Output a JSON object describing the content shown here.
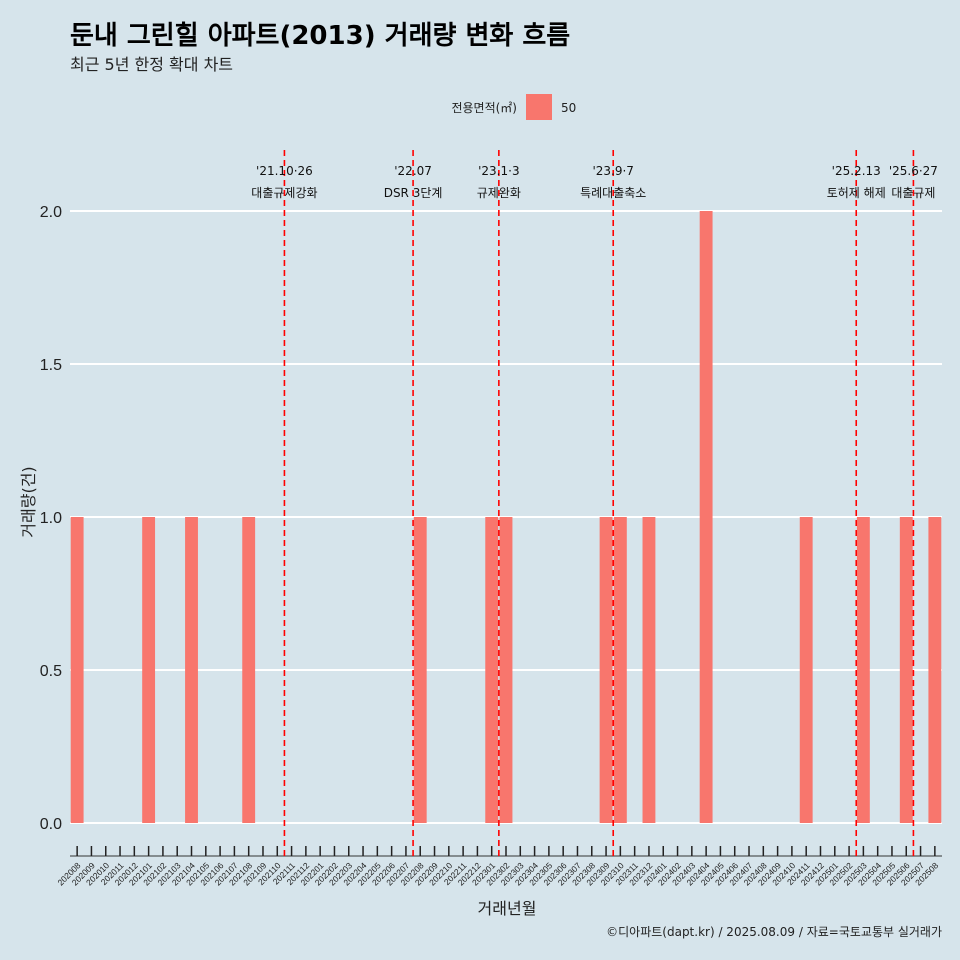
{
  "title": "둔내 그린힐 아파트(2013) 거래량 변화 흐름",
  "subtitle": "최근 5년 한정 확대 차트",
  "legend": {
    "title": "전용면적(㎡)",
    "items": [
      {
        "label": "50",
        "color": "#f8766d"
      }
    ]
  },
  "caption": "©디아파트(dapt.kr) / 2025.08.09 / 자료=국토교통부 실거래가",
  "chart_data": {
    "type": "bar",
    "xlabel": "거래년월",
    "ylabel": "거래량(건)",
    "ylim": [
      0,
      2.1
    ],
    "yticks": [
      0,
      0.5,
      1,
      1.5,
      2
    ],
    "ytick_labels": [
      "0.0",
      "0.5",
      "1.0",
      "1.5",
      "2.0"
    ],
    "grid": true,
    "legend_position": "top",
    "categories": [
      "202008",
      "202009",
      "202010",
      "202011",
      "202012",
      "202101",
      "202102",
      "202103",
      "202104",
      "202105",
      "202106",
      "202107",
      "202108",
      "202109",
      "202110",
      "202111",
      "202112",
      "202201",
      "202202",
      "202203",
      "202204",
      "202205",
      "202206",
      "202207",
      "202208",
      "202209",
      "202210",
      "202211",
      "202212",
      "202301",
      "202302",
      "202303",
      "202304",
      "202305",
      "202306",
      "202307",
      "202308",
      "202309",
      "202310",
      "202311",
      "202312",
      "202401",
      "202402",
      "202403",
      "202404",
      "202405",
      "202406",
      "202407",
      "202408",
      "202409",
      "202410",
      "202411",
      "202412",
      "202501",
      "202502",
      "202503",
      "202504",
      "202505",
      "202506",
      "202507",
      "202508"
    ],
    "series": [
      {
        "name": "50",
        "color": "#f8766d",
        "values": [
          1,
          0,
          0,
          0,
          0,
          1,
          0,
          0,
          1,
          0,
          0,
          0,
          1,
          0,
          0,
          0,
          0,
          0,
          0,
          0,
          0,
          0,
          0,
          0,
          1,
          0,
          0,
          0,
          0,
          1,
          1,
          0,
          0,
          0,
          0,
          0,
          0,
          1,
          1,
          0,
          1,
          0,
          0,
          0,
          2,
          0,
          0,
          0,
          0,
          0,
          0,
          1,
          0,
          0,
          0,
          1,
          0,
          0,
          1,
          0,
          1
        ]
      }
    ],
    "annotations": [
      {
        "x": 14.5,
        "date": "'21.10·26",
        "text": "대출규제강화"
      },
      {
        "x": 23.5,
        "date": "'22.07",
        "text": "DSR 3단계"
      },
      {
        "x": 29.5,
        "date": "'23.1·3",
        "text": "규제완화"
      },
      {
        "x": 37.5,
        "date": "'23.9·7",
        "text": "특례대출축소"
      },
      {
        "x": 54.5,
        "date": "'25.2.13",
        "text": "토허제 해제"
      },
      {
        "x": 58.5,
        "date": "'25.6·27",
        "text": "대출규제"
      }
    ]
  }
}
